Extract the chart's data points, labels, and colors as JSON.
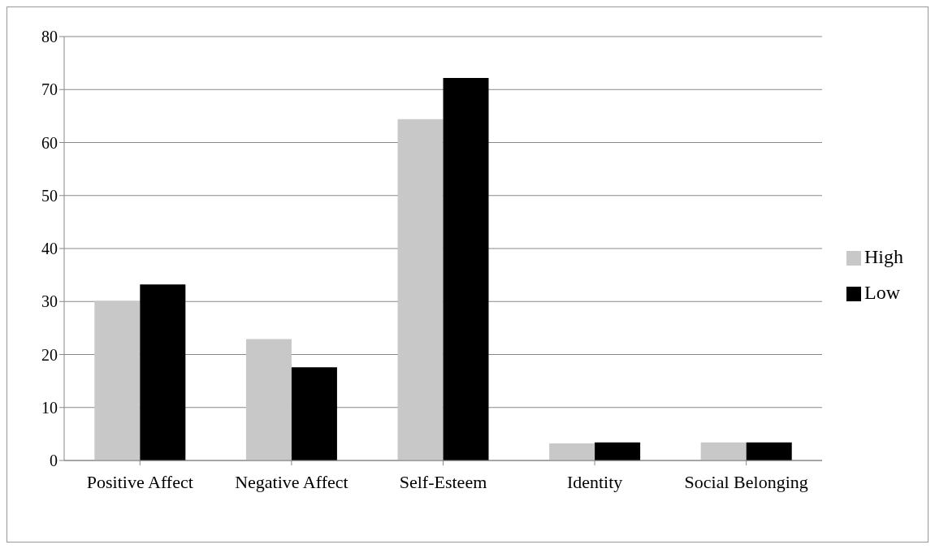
{
  "chart_data": {
    "type": "bar",
    "categories": [
      "Positive Affect",
      "Negative Affect",
      "Self-Esteem",
      "Identity",
      "Social Belonging"
    ],
    "series": [
      {
        "name": "High",
        "color": "#c8c8c8",
        "values": [
          30.1,
          22.9,
          64.4,
          3.2,
          3.4
        ]
      },
      {
        "name": "Low",
        "color": "#000000",
        "values": [
          33.2,
          17.6,
          72.2,
          3.4,
          3.4
        ]
      }
    ],
    "ylim": [
      0,
      80
    ],
    "yticks": [
      0,
      10,
      20,
      30,
      40,
      50,
      60,
      70,
      80
    ],
    "grid": "y",
    "legend": "right"
  }
}
